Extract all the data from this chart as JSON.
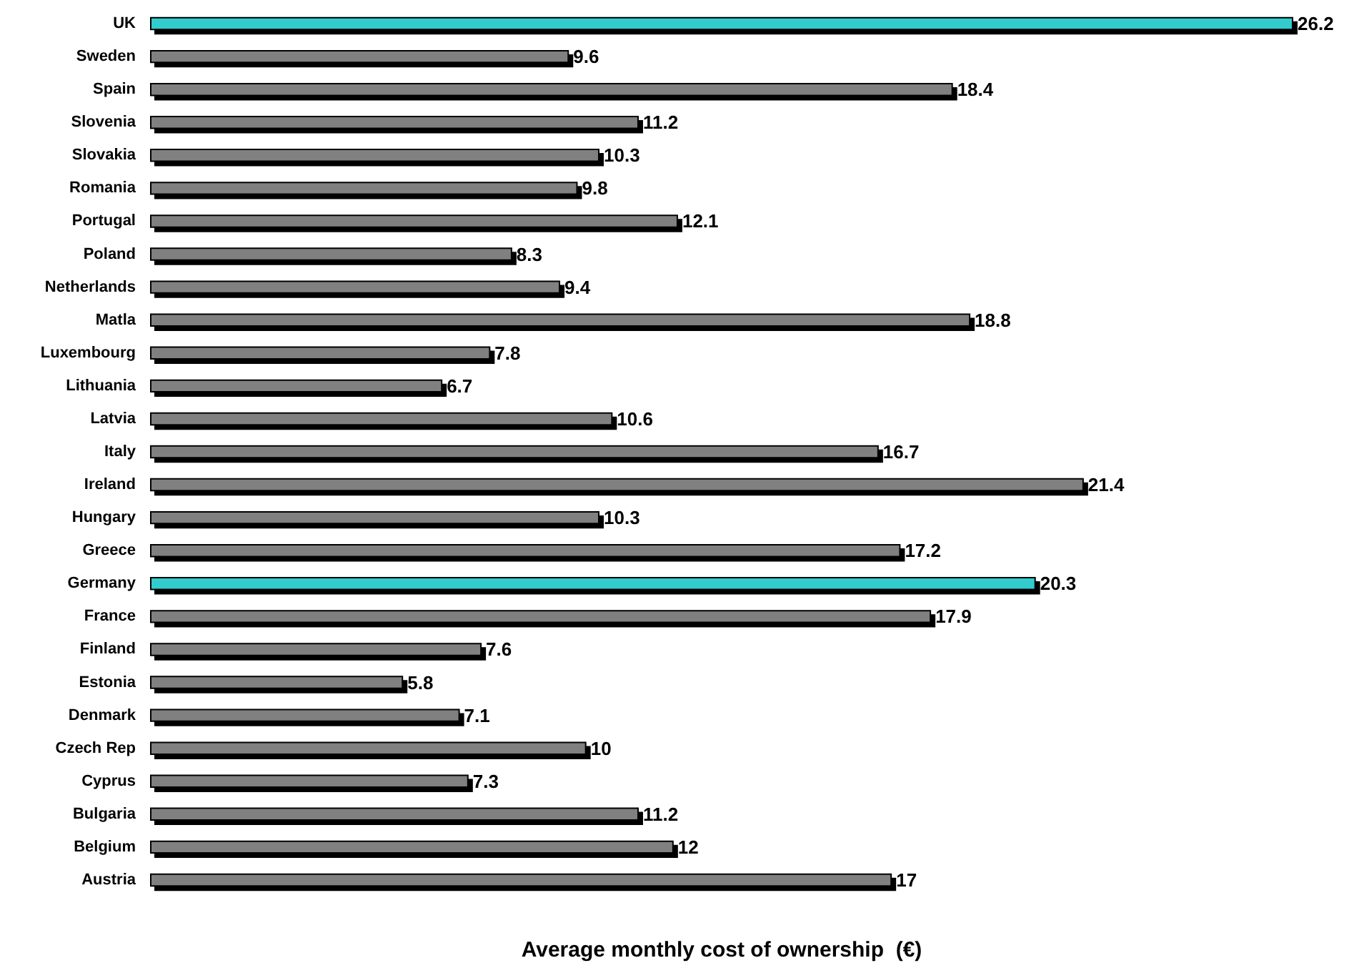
{
  "chart_data": {
    "type": "bar",
    "orientation": "horizontal",
    "xlabel": "Average monthly cost of ownership  (€)",
    "categories": [
      "UK",
      "Sweden",
      "Spain",
      "Slovenia",
      "Slovakia",
      "Romania",
      "Portugal",
      "Poland",
      "Netherlands",
      "Matla",
      "Luxembourg",
      "Lithuania",
      "Latvia",
      "Italy",
      "Ireland",
      "Hungary",
      "Greece",
      "Germany",
      "France",
      "Finland",
      "Estonia",
      "Denmark",
      "Czech Rep",
      "Cyprus",
      "Bulgaria",
      "Belgium",
      "Austria"
    ],
    "values": [
      26.2,
      9.6,
      18.4,
      11.2,
      10.3,
      9.8,
      12.1,
      8.3,
      9.4,
      18.8,
      7.8,
      6.7,
      10.6,
      16.7,
      21.4,
      10.3,
      17.2,
      20.3,
      17.9,
      7.6,
      5.8,
      7.1,
      10,
      7.3,
      11.2,
      12,
      17
    ],
    "colors": [
      "#33cccc",
      "#808080",
      "#808080",
      "#808080",
      "#808080",
      "#808080",
      "#808080",
      "#808080",
      "#808080",
      "#808080",
      "#808080",
      "#808080",
      "#808080",
      "#808080",
      "#808080",
      "#808080",
      "#808080",
      "#33cccc",
      "#808080",
      "#808080",
      "#808080",
      "#808080",
      "#808080",
      "#808080",
      "#808080",
      "#808080",
      "#808080"
    ],
    "data_labels": true
  }
}
